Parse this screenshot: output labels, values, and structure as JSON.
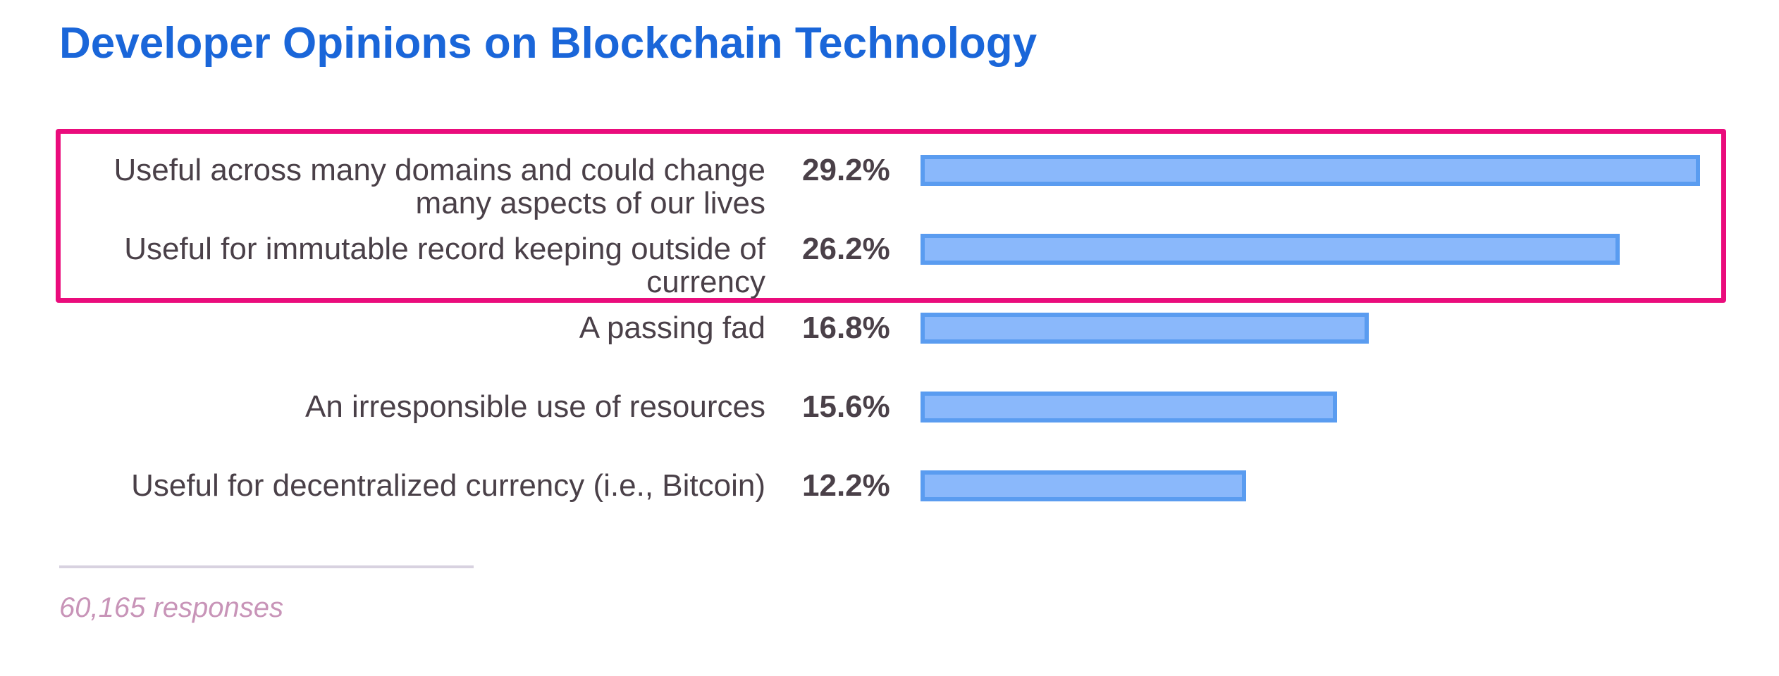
{
  "title": "Developer Opinions on Blockchain Technology",
  "footnote": "60,165 responses",
  "colors": {
    "title": "#1a66d9",
    "highlight": "#ea0c7c",
    "bar_fill": "#8ab8fb",
    "bar_border": "#5a9cf0",
    "label": "#4a4048",
    "divider": "#d8d2e0",
    "footnote": "#c894b8"
  },
  "chart_data": {
    "type": "bar",
    "orientation": "horizontal",
    "title": "Developer Opinions on Blockchain Technology",
    "categories": [
      "Useful across many domains and could change many aspects of our lives",
      "Useful for immutable record keeping outside of currency",
      "A passing fad",
      "An irresponsible use of resources",
      "Useful for decentralized currency (i.e., Bitcoin)"
    ],
    "values": [
      29.2,
      26.2,
      16.8,
      15.6,
      12.2
    ],
    "value_labels": [
      "29.2%",
      "26.2%",
      "16.8%",
      "15.6%",
      "12.2%"
    ],
    "unit": "%",
    "highlighted_categories": [
      0,
      1
    ],
    "grid": false,
    "legend": "none"
  }
}
